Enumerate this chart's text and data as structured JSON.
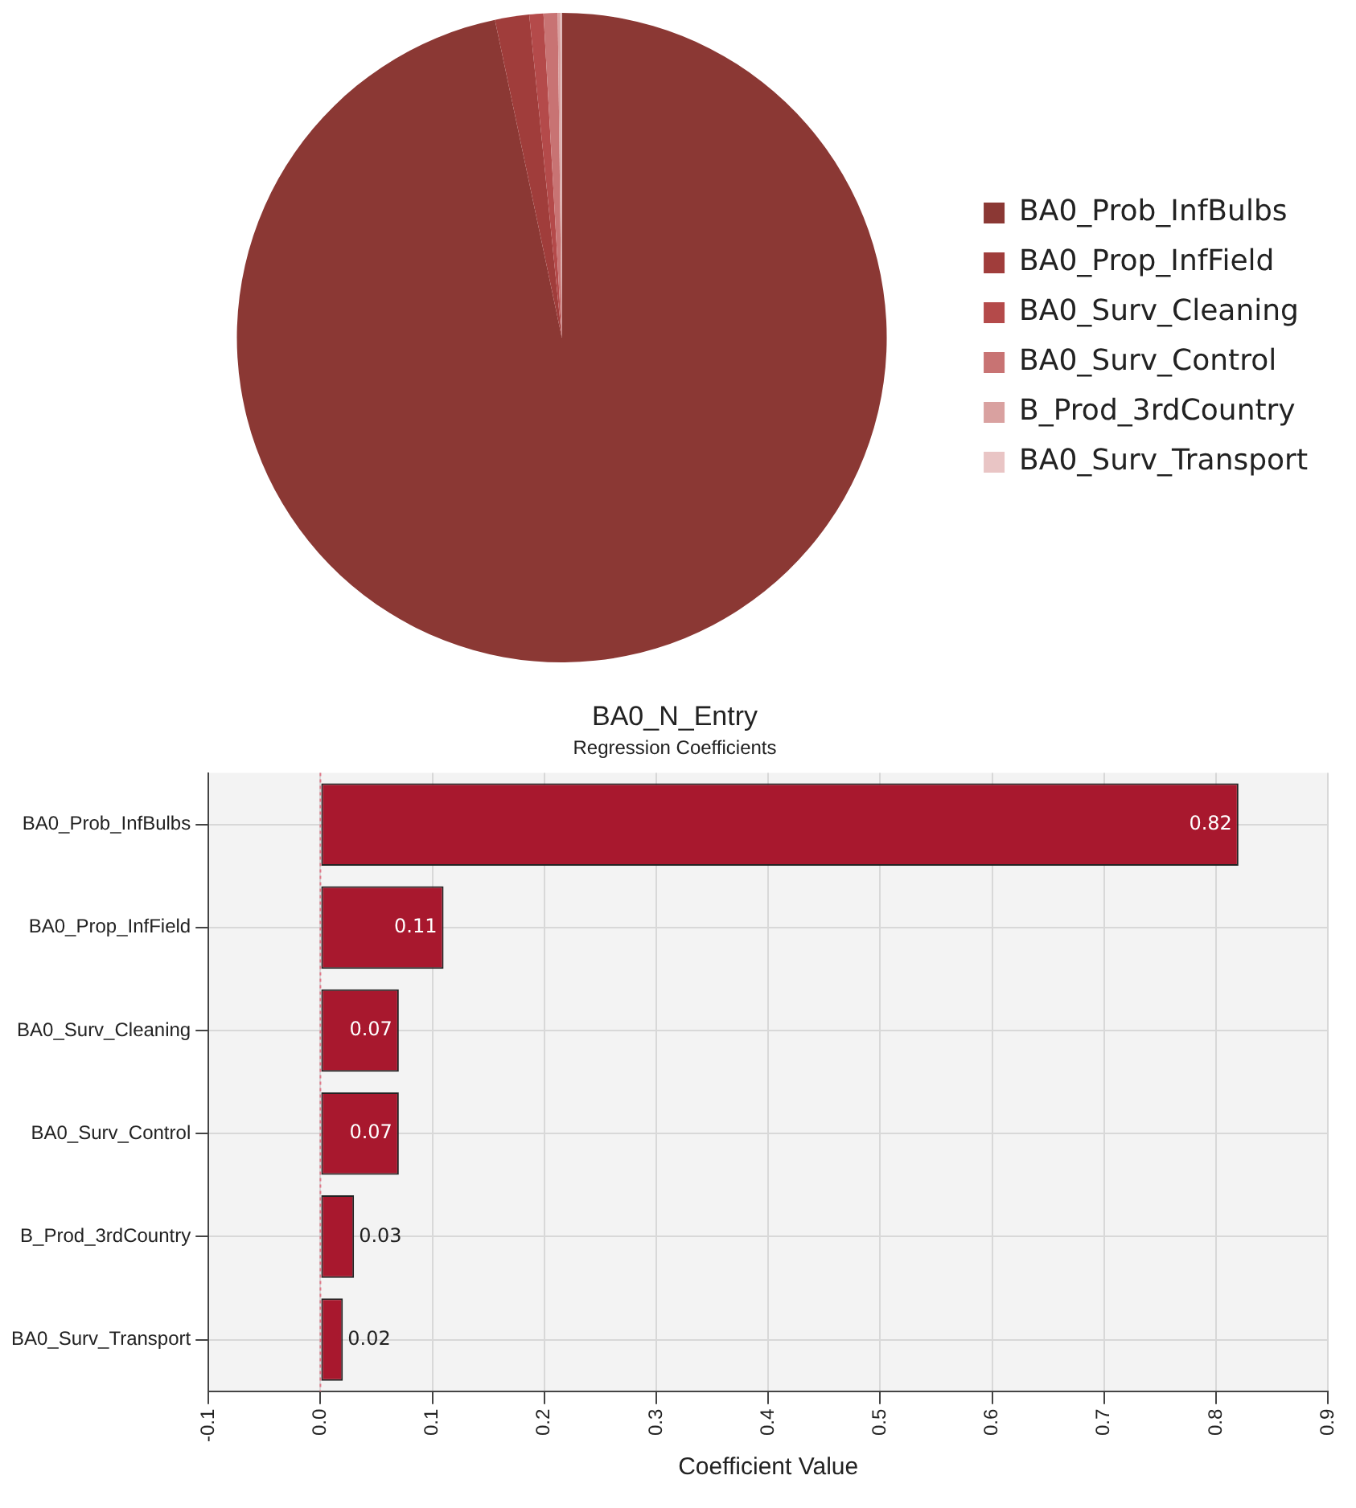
{
  "chart_data": [
    {
      "type": "pie",
      "categories": [
        "BA0_Prob_InfBulbs",
        "BA0_Prop_InfField",
        "BA0_Surv_Cleaning",
        "BA0_Surv_Control",
        "B_Prod_3rdCountry",
        "BA0_Surv_Transport"
      ],
      "values": [
        96.7,
        1.7,
        0.7,
        0.7,
        0.13,
        0.07
      ],
      "colors": [
        "#8b3834",
        "#a03d3b",
        "#b44a4a",
        "#c87373",
        "#d9a1a0",
        "#e9c5c5"
      ],
      "legend": "right"
    },
    {
      "type": "bar",
      "orientation": "horizontal",
      "title": "BA0_N_Entry",
      "subtitle": "Regression Coefficients",
      "xlabel": "Coefficient Value",
      "categories": [
        "BA0_Prob_InfBulbs",
        "BA0_Prop_InfField",
        "BA0_Surv_Cleaning",
        "BA0_Surv_Control",
        "B_Prod_3rdCountry",
        "BA0_Surv_Transport"
      ],
      "values": [
        0.82,
        0.11,
        0.07,
        0.07,
        0.03,
        0.02
      ],
      "color": "#a8182e",
      "xlim": [
        -0.1,
        0.9
      ],
      "xticks": [
        -0.1,
        {
          "value": 0,
          "label": "0.0"
        },
        0.1,
        0.2,
        0.3,
        0.4,
        0.5,
        0.6,
        0.7,
        0.8,
        0.9
      ],
      "grid": true,
      "data_labels": true,
      "ref_lines": [
        {
          "axis": "x",
          "value": 0,
          "color": "#e07a8a",
          "line_style": "dotted"
        }
      ]
    }
  ]
}
